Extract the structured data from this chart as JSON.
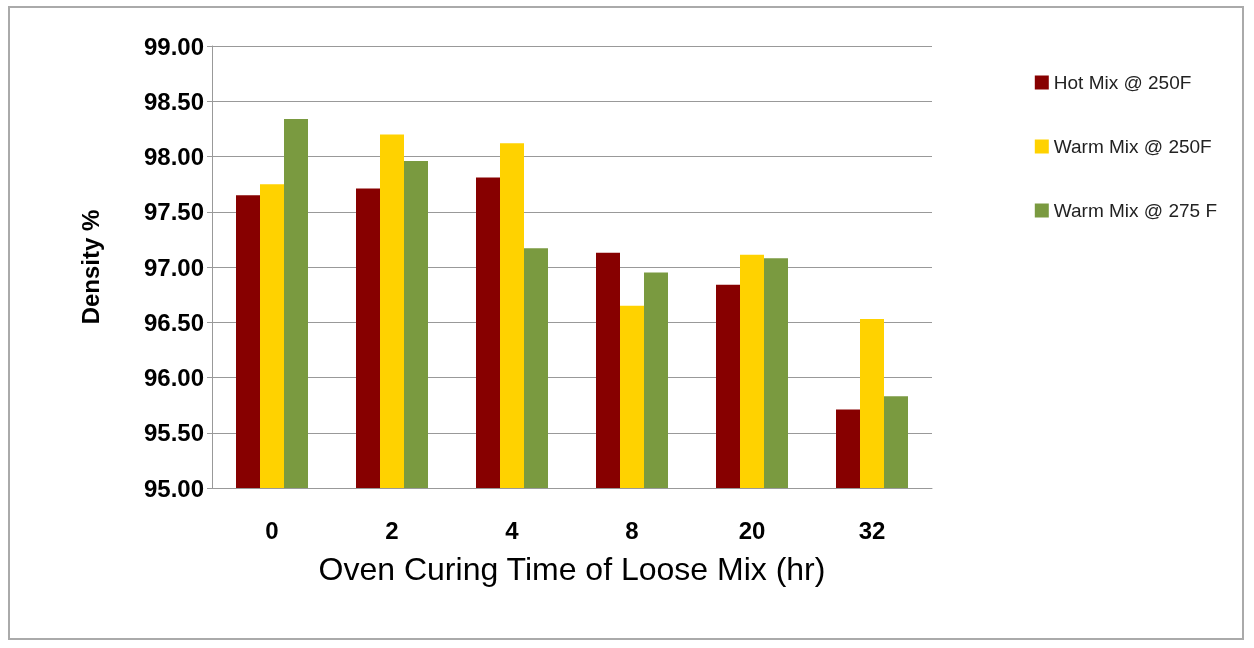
{
  "chart_data": {
    "type": "bar",
    "xlabel": "Oven Curing Time of Loose Mix (hr)",
    "ylabel": "Density %",
    "categories": [
      "0",
      "2",
      "4",
      "8",
      "20",
      "32"
    ],
    "series": [
      {
        "name": "Hot Mix @ 250F",
        "color": "#870000",
        "values": [
          97.65,
          97.71,
          97.81,
          97.13,
          96.84,
          95.71
        ]
      },
      {
        "name": "Warm Mix @ 250F",
        "color": "#ffd200",
        "values": [
          97.75,
          98.2,
          98.12,
          96.65,
          97.11,
          96.53
        ]
      },
      {
        "name": "Warm Mix @ 275 F",
        "color": "#7a9a40",
        "values": [
          98.34,
          97.96,
          97.17,
          96.95,
          97.08,
          95.83
        ]
      }
    ],
    "ylim": [
      95,
      99
    ],
    "yticks": [
      {
        "value": 95,
        "label": "95.00"
      },
      {
        "value": 95.5,
        "label": "95.50"
      },
      {
        "value": 96,
        "label": "96.00"
      },
      {
        "value": 96.5,
        "label": "96.50"
      },
      {
        "value": 97,
        "label": "97.00"
      },
      {
        "value": 97.5,
        "label": "97.50"
      },
      {
        "value": 98,
        "label": "98.00"
      },
      {
        "value": 98.5,
        "label": "98.50"
      },
      {
        "value": 99,
        "label": "99.00"
      }
    ],
    "grid": "y",
    "legend": "right"
  }
}
